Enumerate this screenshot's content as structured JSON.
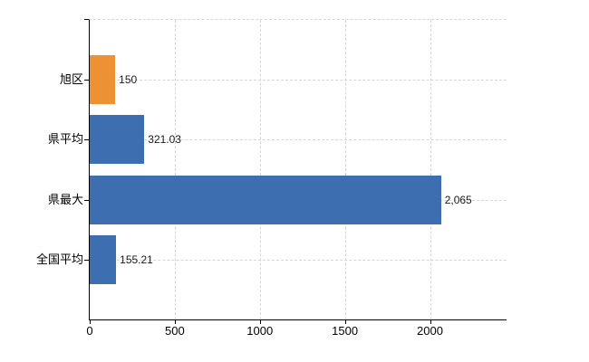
{
  "chart_data": {
    "type": "bar",
    "orientation": "horizontal",
    "title": "",
    "xlabel": "",
    "ylabel": "",
    "categories": [
      "旭区",
      "県平均",
      "県最大",
      "全国平均"
    ],
    "values": [
      150,
      321.03,
      2065,
      155.21
    ],
    "value_labels": [
      "150",
      "321.03",
      "2,065",
      "155.21"
    ],
    "bar_colors": [
      "#ED9233",
      "#3C6EB0",
      "#3C6EB0",
      "#3C6EB0"
    ],
    "x_ticks": [
      0,
      500,
      1000,
      1500,
      2000
    ],
    "x_tick_labels": [
      "0",
      "500",
      "1000",
      "1500",
      "2000"
    ],
    "xlim": [
      0,
      2450
    ],
    "grid": "on",
    "legend": "none",
    "colors": {
      "highlight_bar": "#ED9233",
      "default_bar": "#3C6EB0",
      "grid": "#D2D8D2",
      "axis": "#000000",
      "text": "#1A1A1A",
      "background": "#FFFFFF"
    }
  }
}
